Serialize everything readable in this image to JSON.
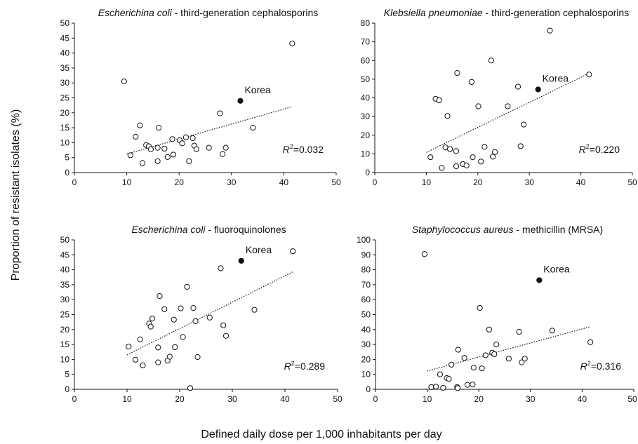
{
  "figure": {
    "y_label": "Proportion of resistant isolates (%)",
    "x_label": "Defined daily dose per 1,000 inhabitants per day",
    "highlight_color": "#111111",
    "point_color": "#ffffff"
  },
  "chart_data": [
    {
      "type": "scatter",
      "title_italic": "Escherichina coli",
      "title_rest": " - third-generation cephalosporins",
      "xlim": [
        0,
        50
      ],
      "ylim": [
        0,
        50
      ],
      "xticks": [
        0,
        10,
        20,
        30,
        40,
        50
      ],
      "yticks": [
        0,
        5,
        10,
        15,
        20,
        25,
        30,
        35,
        40,
        45,
        50
      ],
      "r2": "=0.032",
      "highlight_label": "Korea",
      "highlight_point": {
        "x": 31.7,
        "y": 24
      },
      "trend": {
        "x": [
          10,
          41.5
        ],
        "y": [
          6.2,
          22
        ]
      },
      "points": [
        {
          "x": 9.5,
          "y": 30.5
        },
        {
          "x": 10.7,
          "y": 5.8
        },
        {
          "x": 11.7,
          "y": 12
        },
        {
          "x": 12.5,
          "y": 15.8
        },
        {
          "x": 13,
          "y": 3.2
        },
        {
          "x": 13.7,
          "y": 9.2
        },
        {
          "x": 14.2,
          "y": 8.8
        },
        {
          "x": 14.6,
          "y": 7.8
        },
        {
          "x": 15.9,
          "y": 8.3
        },
        {
          "x": 16.1,
          "y": 15
        },
        {
          "x": 15.9,
          "y": 3.8
        },
        {
          "x": 17.2,
          "y": 8
        },
        {
          "x": 17.8,
          "y": 5.2
        },
        {
          "x": 18.7,
          "y": 11.2
        },
        {
          "x": 18.9,
          "y": 6
        },
        {
          "x": 20.1,
          "y": 10.8
        },
        {
          "x": 20.6,
          "y": 9.8
        },
        {
          "x": 21.3,
          "y": 11.8
        },
        {
          "x": 21.9,
          "y": 3.8
        },
        {
          "x": 22.6,
          "y": 11.5
        },
        {
          "x": 22.9,
          "y": 9
        },
        {
          "x": 23.3,
          "y": 7.8
        },
        {
          "x": 25.7,
          "y": 8.3
        },
        {
          "x": 27.8,
          "y": 19.8
        },
        {
          "x": 28.3,
          "y": 6.2
        },
        {
          "x": 28.9,
          "y": 8.3
        },
        {
          "x": 34.1,
          "y": 15
        },
        {
          "x": 41.6,
          "y": 43.2
        }
      ]
    },
    {
      "type": "scatter",
      "title_italic": "Klebsiella pneumoniae",
      "title_rest": " - third-generation cephalosporins",
      "xlim": [
        0,
        50
      ],
      "ylim": [
        0,
        80
      ],
      "xticks": [
        0,
        10,
        20,
        30,
        40,
        50
      ],
      "xtick_labels": [
        "0",
        "10",
        "20",
        "30",
        "40",
        "50"
      ],
      "yticks": [
        0,
        10,
        20,
        30,
        40,
        50,
        60,
        70,
        80
      ],
      "r2": "=0.220",
      "highlight_label": "Korea",
      "highlight_point": {
        "x": 31.7,
        "y": 44.5
      },
      "trend": {
        "x": [
          10,
          41.5
        ],
        "y": [
          10.8,
          53
        ]
      },
      "points": [
        {
          "x": 10.8,
          "y": 8.2
        },
        {
          "x": 11.8,
          "y": 39.5
        },
        {
          "x": 12.5,
          "y": 38.7
        },
        {
          "x": 13,
          "y": 2.5
        },
        {
          "x": 13.7,
          "y": 13.5
        },
        {
          "x": 14.1,
          "y": 30.3
        },
        {
          "x": 14.6,
          "y": 12.6
        },
        {
          "x": 15.8,
          "y": 11.5
        },
        {
          "x": 16,
          "y": 53.3
        },
        {
          "x": 15.8,
          "y": 3.4
        },
        {
          "x": 17.1,
          "y": 4.5
        },
        {
          "x": 17.8,
          "y": 3.8
        },
        {
          "x": 18.8,
          "y": 48.5
        },
        {
          "x": 19,
          "y": 8.2
        },
        {
          "x": 20.1,
          "y": 35.5
        },
        {
          "x": 20.6,
          "y": 5.9
        },
        {
          "x": 21.3,
          "y": 13.8
        },
        {
          "x": 22.6,
          "y": 60
        },
        {
          "x": 22.9,
          "y": 8.5
        },
        {
          "x": 23.3,
          "y": 11
        },
        {
          "x": 25.8,
          "y": 35.5
        },
        {
          "x": 27.8,
          "y": 46
        },
        {
          "x": 28.3,
          "y": 14.1
        },
        {
          "x": 28.9,
          "y": 25.7
        },
        {
          "x": 34,
          "y": 76
        },
        {
          "x": 41.6,
          "y": 52.5
        }
      ]
    },
    {
      "type": "scatter",
      "title_italic": "Escherichina coli",
      "title_rest": " - fluoroquinolones",
      "xlim": [
        0,
        50
      ],
      "ylim": [
        0,
        50
      ],
      "xticks": [
        0,
        10,
        20,
        30,
        40,
        50
      ],
      "yticks": [
        0,
        5,
        10,
        15,
        20,
        25,
        30,
        35,
        40,
        45,
        50
      ],
      "r2": "=0.289",
      "highlight_label": "Korea",
      "highlight_point": {
        "x": 31.7,
        "y": 43
      },
      "trend": {
        "x": [
          10,
          41.5
        ],
        "y": [
          11.5,
          39.3
        ]
      },
      "points": [
        {
          "x": 10.3,
          "y": 14.3
        },
        {
          "x": 11.6,
          "y": 9.9
        },
        {
          "x": 12.5,
          "y": 16.7
        },
        {
          "x": 13,
          "y": 8
        },
        {
          "x": 14.2,
          "y": 22
        },
        {
          "x": 14.5,
          "y": 21
        },
        {
          "x": 14.8,
          "y": 23.7
        },
        {
          "x": 15.9,
          "y": 14
        },
        {
          "x": 15.9,
          "y": 9
        },
        {
          "x": 16.2,
          "y": 31.2
        },
        {
          "x": 17.1,
          "y": 26.8
        },
        {
          "x": 17.7,
          "y": 9.6
        },
        {
          "x": 18.1,
          "y": 10.9
        },
        {
          "x": 18.9,
          "y": 23.3
        },
        {
          "x": 19.1,
          "y": 14.1
        },
        {
          "x": 20.2,
          "y": 27.1
        },
        {
          "x": 20.6,
          "y": 17.5
        },
        {
          "x": 21.4,
          "y": 34.3
        },
        {
          "x": 22,
          "y": 0.4
        },
        {
          "x": 22.6,
          "y": 27.2
        },
        {
          "x": 23,
          "y": 22.8
        },
        {
          "x": 23.4,
          "y": 10.8
        },
        {
          "x": 25.7,
          "y": 24
        },
        {
          "x": 27.8,
          "y": 40.5
        },
        {
          "x": 28.3,
          "y": 21.4
        },
        {
          "x": 28.8,
          "y": 17.9
        },
        {
          "x": 34.2,
          "y": 26.6
        },
        {
          "x": 41.5,
          "y": 46.2
        }
      ]
    },
    {
      "type": "scatter",
      "title_italic": "Staphylococcus aureus",
      "title_rest": " - methicillin (MRSA)",
      "xlim": [
        0,
        50
      ],
      "ylim": [
        0,
        100
      ],
      "xticks": [
        0,
        10,
        20,
        30,
        40,
        50
      ],
      "yticks": [
        0,
        10,
        20,
        30,
        40,
        50,
        60,
        70,
        80,
        90,
        100
      ],
      "r2": "=0.316",
      "highlight_label": "Korea",
      "highlight_point": {
        "x": 31.7,
        "y": 73
      },
      "trend": {
        "x": [
          10,
          41.5
        ],
        "y": [
          12.2,
          41.8
        ]
      },
      "points": [
        {
          "x": 9.5,
          "y": 90.5
        },
        {
          "x": 10.8,
          "y": 1.5
        },
        {
          "x": 11.7,
          "y": 1.8
        },
        {
          "x": 12.5,
          "y": 10
        },
        {
          "x": 13.1,
          "y": 1
        },
        {
          "x": 13.8,
          "y": 7.5
        },
        {
          "x": 14.2,
          "y": 7
        },
        {
          "x": 14.7,
          "y": 16.5
        },
        {
          "x": 15.8,
          "y": 1.5
        },
        {
          "x": 16,
          "y": 26.5
        },
        {
          "x": 15.9,
          "y": 0.8
        },
        {
          "x": 17.2,
          "y": 21
        },
        {
          "x": 17.8,
          "y": 3
        },
        {
          "x": 18.8,
          "y": 3.2
        },
        {
          "x": 19,
          "y": 14.5
        },
        {
          "x": 20.2,
          "y": 54.5
        },
        {
          "x": 20.6,
          "y": 14
        },
        {
          "x": 21.3,
          "y": 22.8
        },
        {
          "x": 22,
          "y": 40
        },
        {
          "x": 22.6,
          "y": 24.5
        },
        {
          "x": 23,
          "y": 23.5
        },
        {
          "x": 23.4,
          "y": 30
        },
        {
          "x": 25.8,
          "y": 20.5
        },
        {
          "x": 27.8,
          "y": 38.5
        },
        {
          "x": 28.3,
          "y": 18
        },
        {
          "x": 28.9,
          "y": 20.5
        },
        {
          "x": 34.2,
          "y": 39.3
        },
        {
          "x": 41.6,
          "y": 31.5
        }
      ]
    }
  ]
}
